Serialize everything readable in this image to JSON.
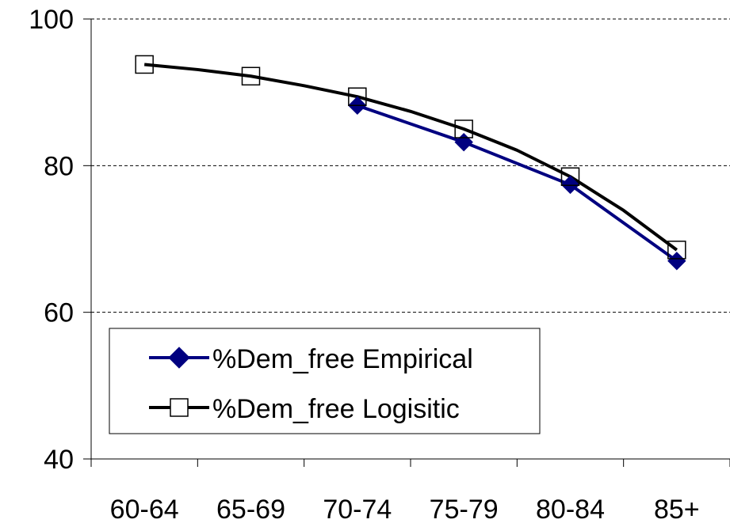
{
  "chart_data": {
    "type": "line",
    "categories": [
      "60-64",
      "65-69",
      "70-74",
      "75-79",
      "80-84",
      "85+"
    ],
    "x_continuous": [
      1,
      1.5,
      2,
      2.5,
      3,
      3.5,
      4,
      4.5,
      5,
      5.5,
      6
    ],
    "series": [
      {
        "name": "%Dem_free Empirical",
        "color": "#000080",
        "marker": "diamond-filled",
        "x": [
          3,
          4,
          5,
          6
        ],
        "values": [
          88.2,
          83.2,
          77.4,
          67.0
        ]
      },
      {
        "name": "%Dem_free Logisitic",
        "color": "#000000",
        "marker": "square-open",
        "x": [
          1,
          2,
          3,
          4,
          5,
          6
        ],
        "values": [
          93.8,
          92.2,
          89.4,
          85.0,
          78.5,
          68.5
        ],
        "curve_x": [
          1,
          1.5,
          2,
          2.5,
          3,
          3.5,
          4,
          4.5,
          5,
          5.5,
          6
        ],
        "curve_values": [
          93.8,
          93.1,
          92.2,
          90.9,
          89.4,
          87.4,
          85.0,
          82.1,
          78.5,
          73.9,
          68.5
        ]
      }
    ],
    "yticks": [
      40,
      60,
      80,
      100
    ],
    "ylim": [
      40,
      100
    ],
    "grid": "horizontal-dashed",
    "legend_position": "lower-left",
    "title": "",
    "xlabel": "",
    "ylabel": ""
  }
}
